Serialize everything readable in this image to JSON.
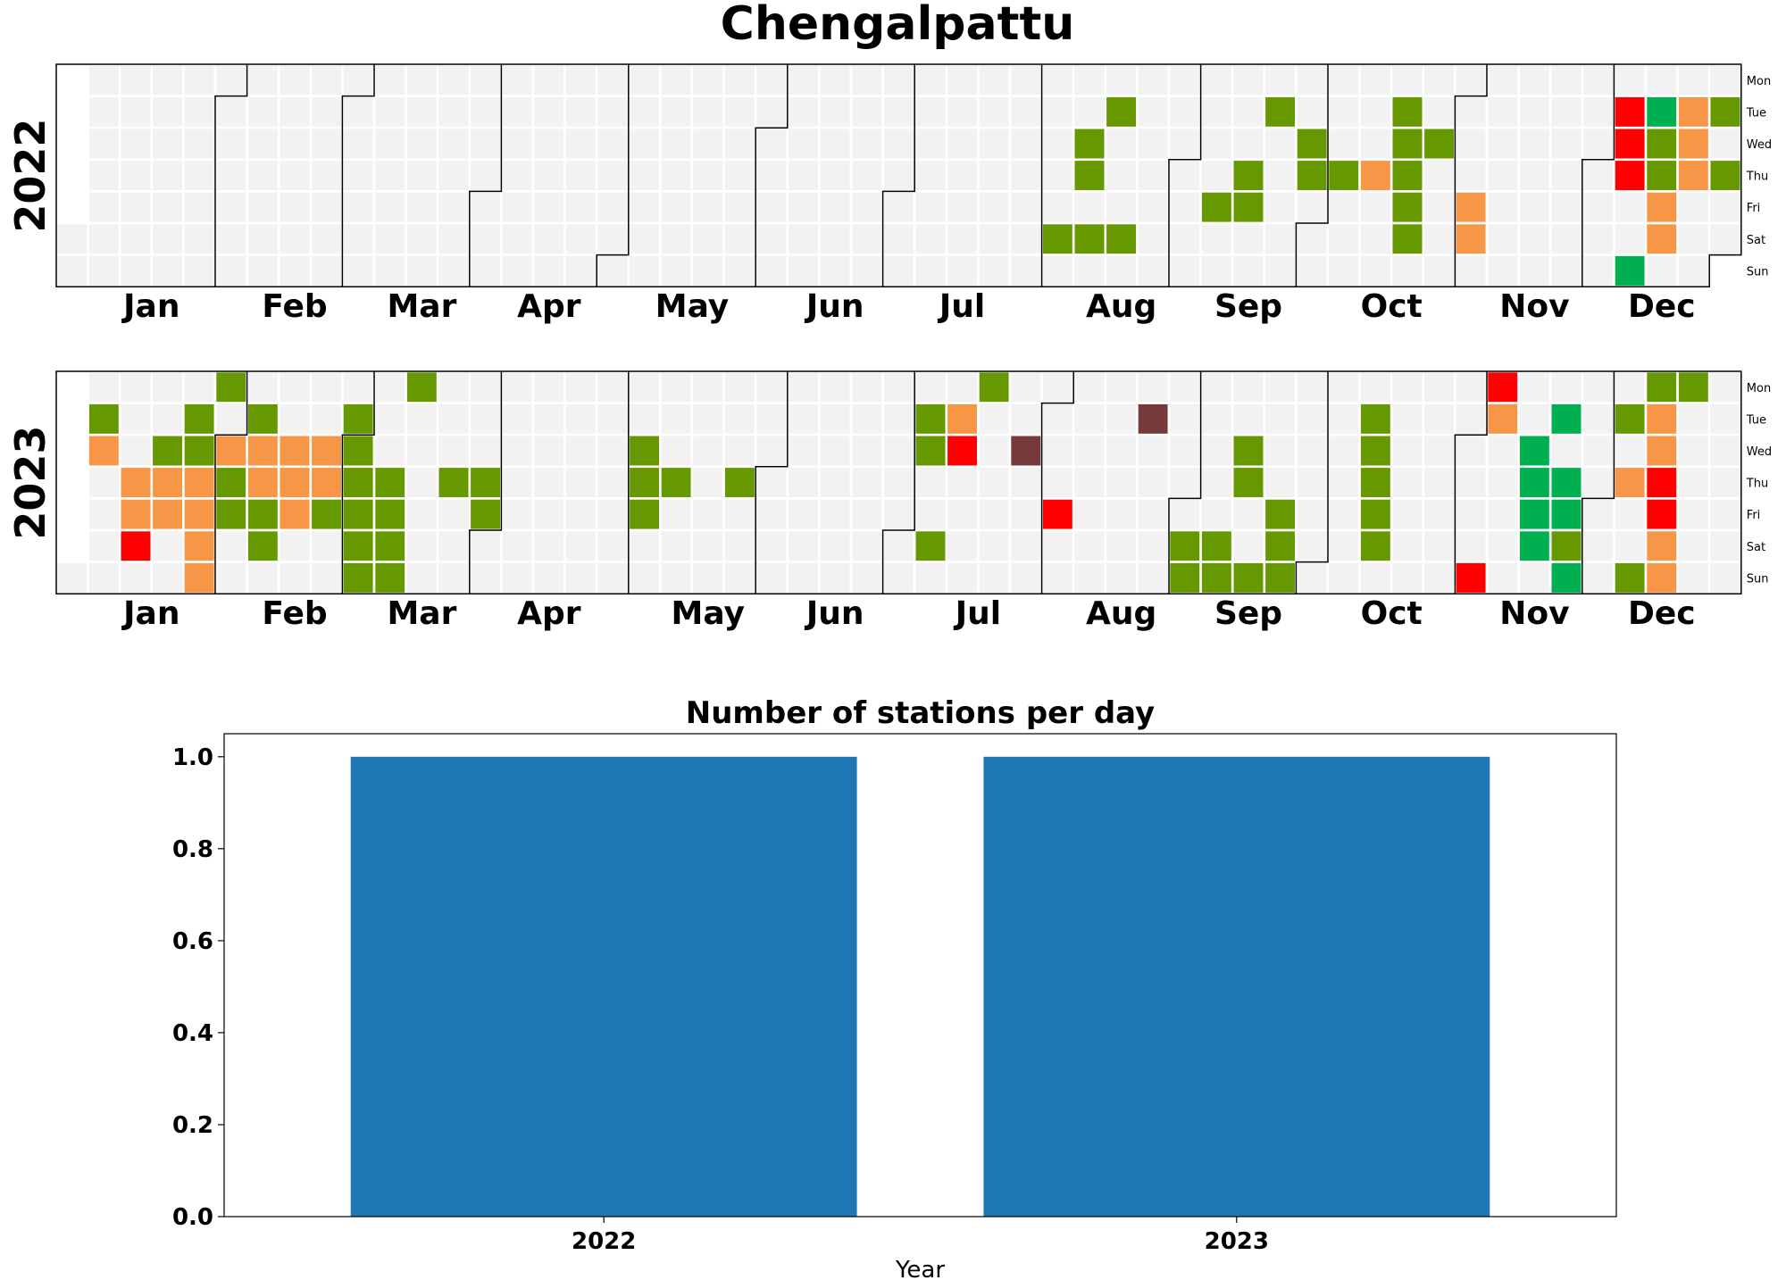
{
  "title": "Chengalpattu",
  "colors": {
    "empty": "#f2f2f2",
    "good": "#00b050",
    "satisfactory": "#669900",
    "moderate": "#f79646",
    "poor": "#ff0000",
    "very_poor": "#763a3a",
    "bar": "#1f77b4"
  },
  "weekday_labels": [
    "Mon",
    "Tue",
    "Wed",
    "Thu",
    "Fri",
    "Sat",
    "Sun"
  ],
  "month_labels": [
    "Jan",
    "Feb",
    "Mar",
    "Apr",
    "May",
    "Jun",
    "Jul",
    "Aug",
    "Sep",
    "Oct",
    "Nov",
    "Dec"
  ],
  "chart_data": [
    {
      "type": "heatmap",
      "title": "2022",
      "year": 2022,
      "rows": [
        "Mon",
        "Tue",
        "Wed",
        "Thu",
        "Fri",
        "Sat",
        "Sun"
      ],
      "days": [
        [
          "2022-08-06",
          "satisfactory"
        ],
        [
          "2022-08-10",
          "satisfactory"
        ],
        [
          "2022-08-11",
          "satisfactory"
        ],
        [
          "2022-08-13",
          "satisfactory"
        ],
        [
          "2022-08-16",
          "satisfactory"
        ],
        [
          "2022-08-20",
          "satisfactory"
        ],
        [
          "2022-09-09",
          "satisfactory"
        ],
        [
          "2022-09-15",
          "satisfactory"
        ],
        [
          "2022-09-16",
          "satisfactory"
        ],
        [
          "2022-09-20",
          "satisfactory"
        ],
        [
          "2022-09-28",
          "satisfactory"
        ],
        [
          "2022-09-29",
          "satisfactory"
        ],
        [
          "2022-10-06",
          "satisfactory"
        ],
        [
          "2022-10-13",
          "moderate"
        ],
        [
          "2022-10-18",
          "satisfactory"
        ],
        [
          "2022-10-19",
          "satisfactory"
        ],
        [
          "2022-10-20",
          "satisfactory"
        ],
        [
          "2022-10-21",
          "satisfactory"
        ],
        [
          "2022-10-22",
          "satisfactory"
        ],
        [
          "2022-10-26",
          "satisfactory"
        ],
        [
          "2022-11-04",
          "moderate"
        ],
        [
          "2022-11-05",
          "moderate"
        ],
        [
          "2022-12-06",
          "poor"
        ],
        [
          "2022-12-07",
          "poor"
        ],
        [
          "2022-12-08",
          "poor"
        ],
        [
          "2022-12-11",
          "good"
        ],
        [
          "2022-12-13",
          "good"
        ],
        [
          "2022-12-14",
          "satisfactory"
        ],
        [
          "2022-12-15",
          "satisfactory"
        ],
        [
          "2022-12-16",
          "moderate"
        ],
        [
          "2022-12-17",
          "moderate"
        ],
        [
          "2022-12-20",
          "moderate"
        ],
        [
          "2022-12-21",
          "moderate"
        ],
        [
          "2022-12-22",
          "moderate"
        ],
        [
          "2022-12-27",
          "satisfactory"
        ],
        [
          "2022-12-29",
          "satisfactory"
        ]
      ]
    },
    {
      "type": "heatmap",
      "title": "2023",
      "year": 2023,
      "rows": [
        "Mon",
        "Tue",
        "Wed",
        "Thu",
        "Fri",
        "Sat",
        "Sun"
      ],
      "days": [
        [
          "2023-01-03",
          "satisfactory"
        ],
        [
          "2023-01-04",
          "moderate"
        ],
        [
          "2023-01-12",
          "moderate"
        ],
        [
          "2023-01-13",
          "moderate"
        ],
        [
          "2023-01-14",
          "poor"
        ],
        [
          "2023-01-18",
          "satisfactory"
        ],
        [
          "2023-01-19",
          "moderate"
        ],
        [
          "2023-01-20",
          "moderate"
        ],
        [
          "2023-01-24",
          "satisfactory"
        ],
        [
          "2023-01-25",
          "satisfactory"
        ],
        [
          "2023-01-26",
          "moderate"
        ],
        [
          "2023-01-27",
          "moderate"
        ],
        [
          "2023-01-28",
          "moderate"
        ],
        [
          "2023-01-29",
          "moderate"
        ],
        [
          "2023-01-30",
          "satisfactory"
        ],
        [
          "2023-02-01",
          "moderate"
        ],
        [
          "2023-02-02",
          "satisfactory"
        ],
        [
          "2023-02-03",
          "satisfactory"
        ],
        [
          "2023-02-07",
          "satisfactory"
        ],
        [
          "2023-02-08",
          "moderate"
        ],
        [
          "2023-02-09",
          "moderate"
        ],
        [
          "2023-02-10",
          "satisfactory"
        ],
        [
          "2023-02-11",
          "satisfactory"
        ],
        [
          "2023-02-15",
          "moderate"
        ],
        [
          "2023-02-16",
          "moderate"
        ],
        [
          "2023-02-17",
          "moderate"
        ],
        [
          "2023-02-22",
          "moderate"
        ],
        [
          "2023-02-23",
          "moderate"
        ],
        [
          "2023-02-24",
          "satisfactory"
        ],
        [
          "2023-02-28",
          "satisfactory"
        ],
        [
          "2023-03-01",
          "satisfactory"
        ],
        [
          "2023-03-02",
          "satisfactory"
        ],
        [
          "2023-03-03",
          "satisfactory"
        ],
        [
          "2023-03-04",
          "satisfactory"
        ],
        [
          "2023-03-05",
          "satisfactory"
        ],
        [
          "2023-03-09",
          "satisfactory"
        ],
        [
          "2023-03-10",
          "satisfactory"
        ],
        [
          "2023-03-11",
          "satisfactory"
        ],
        [
          "2023-03-12",
          "satisfactory"
        ],
        [
          "2023-03-13",
          "satisfactory"
        ],
        [
          "2023-03-23",
          "satisfactory"
        ],
        [
          "2023-03-30",
          "satisfactory"
        ],
        [
          "2023-03-31",
          "satisfactory"
        ],
        [
          "2023-05-03",
          "satisfactory"
        ],
        [
          "2023-05-04",
          "satisfactory"
        ],
        [
          "2023-05-05",
          "satisfactory"
        ],
        [
          "2023-05-11",
          "satisfactory"
        ],
        [
          "2023-05-25",
          "satisfactory"
        ],
        [
          "2023-07-04",
          "satisfactory"
        ],
        [
          "2023-07-05",
          "satisfactory"
        ],
        [
          "2023-07-08",
          "satisfactory"
        ],
        [
          "2023-07-11",
          "moderate"
        ],
        [
          "2023-07-12",
          "poor"
        ],
        [
          "2023-07-17",
          "satisfactory"
        ],
        [
          "2023-07-26",
          "very_poor"
        ],
        [
          "2023-08-04",
          "poor"
        ],
        [
          "2023-08-22",
          "very_poor"
        ],
        [
          "2023-09-02",
          "satisfactory"
        ],
        [
          "2023-09-03",
          "satisfactory"
        ],
        [
          "2023-09-09",
          "satisfactory"
        ],
        [
          "2023-09-10",
          "satisfactory"
        ],
        [
          "2023-09-13",
          "satisfactory"
        ],
        [
          "2023-09-14",
          "satisfactory"
        ],
        [
          "2023-09-17",
          "satisfactory"
        ],
        [
          "2023-09-22",
          "satisfactory"
        ],
        [
          "2023-09-23",
          "satisfactory"
        ],
        [
          "2023-09-24",
          "satisfactory"
        ],
        [
          "2023-10-10",
          "satisfactory"
        ],
        [
          "2023-10-11",
          "satisfactory"
        ],
        [
          "2023-10-12",
          "satisfactory"
        ],
        [
          "2023-10-13",
          "satisfactory"
        ],
        [
          "2023-10-14",
          "satisfactory"
        ],
        [
          "2023-11-05",
          "poor"
        ],
        [
          "2023-11-06",
          "poor"
        ],
        [
          "2023-11-07",
          "moderate"
        ],
        [
          "2023-11-15",
          "good"
        ],
        [
          "2023-11-16",
          "good"
        ],
        [
          "2023-11-17",
          "good"
        ],
        [
          "2023-11-18",
          "good"
        ],
        [
          "2023-11-21",
          "good"
        ],
        [
          "2023-11-23",
          "good"
        ],
        [
          "2023-11-24",
          "good"
        ],
        [
          "2023-11-25",
          "satisfactory"
        ],
        [
          "2023-11-26",
          "good"
        ],
        [
          "2023-12-05",
          "satisfactory"
        ],
        [
          "2023-12-07",
          "moderate"
        ],
        [
          "2023-12-10",
          "satisfactory"
        ],
        [
          "2023-12-11",
          "satisfactory"
        ],
        [
          "2023-12-12",
          "moderate"
        ],
        [
          "2023-12-13",
          "moderate"
        ],
        [
          "2023-12-14",
          "poor"
        ],
        [
          "2023-12-15",
          "poor"
        ],
        [
          "2023-12-16",
          "moderate"
        ],
        [
          "2023-12-17",
          "moderate"
        ],
        [
          "2023-12-18",
          "satisfactory"
        ]
      ]
    },
    {
      "type": "bar",
      "title": "Number of stations per day",
      "categories": [
        "2022",
        "2023"
      ],
      "values": [
        1.0,
        1.0
      ],
      "xlabel": "Year",
      "ylabel": "",
      "ylim": [
        0,
        1.05
      ],
      "yticks": [
        "0.0",
        "0.2",
        "0.4",
        "0.6",
        "0.8",
        "1.0"
      ]
    }
  ]
}
